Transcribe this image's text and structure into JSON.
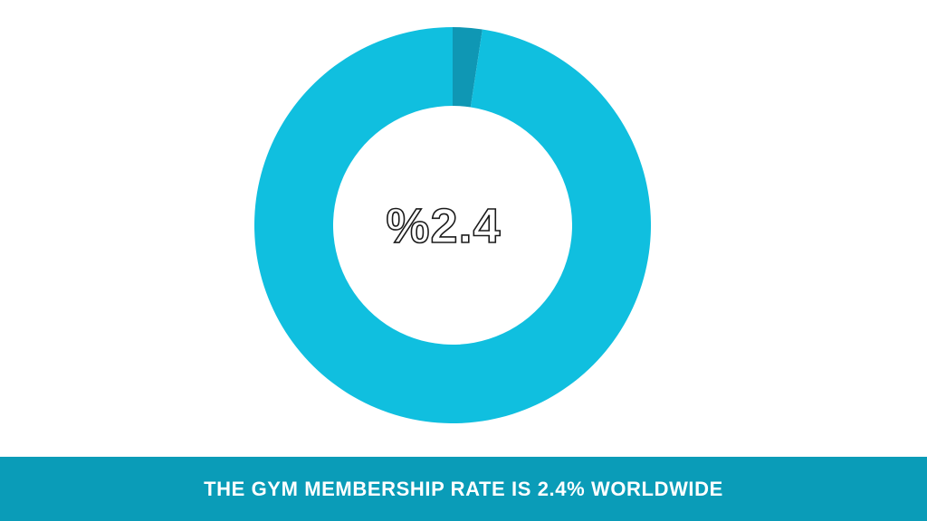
{
  "chart_data": {
    "type": "pie",
    "variant": "donut",
    "title": "",
    "slices": [
      {
        "label": "",
        "value": 2.4,
        "color": "#0F97B4"
      },
      {
        "label": "",
        "value": 97.6,
        "color": "#10BFDF"
      }
    ],
    "center_label": "%2.4",
    "legend": "none"
  },
  "caption": {
    "text": "THE GYM MEMBERSHIP RATE IS 2.4% WORLDWIDE"
  },
  "colors": {
    "footer_background": "#0A9CB8",
    "footer_text": "#FFFFFF",
    "page_background": "#FFFFFF"
  }
}
